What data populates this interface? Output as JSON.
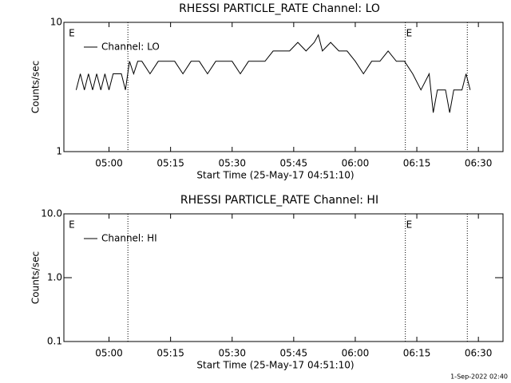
{
  "chart_data": [
    {
      "type": "line",
      "title": "RHESSI PARTICLE_RATE Channel: LO",
      "xlabel": "Start Time (25-May-17 04:51:10)",
      "ylabel": "Counts/sec",
      "log_y": true,
      "xlim": [
        289,
        396
      ],
      "ylim": [
        1,
        10
      ],
      "yticks": [
        1,
        10
      ],
      "xticks": [
        {
          "value": 300,
          "label": "05:00"
        },
        {
          "value": 315,
          "label": "05:15"
        },
        {
          "value": 330,
          "label": "05:30"
        },
        {
          "value": 345,
          "label": "05:45"
        },
        {
          "value": 360,
          "label": "06:00"
        },
        {
          "value": 375,
          "label": "06:15"
        },
        {
          "value": 390,
          "label": "06:30"
        }
      ],
      "vlines": [
        304.6,
        372.2,
        387.3
      ],
      "annotations": [
        {
          "text": "E",
          "x": 290
        },
        {
          "text": "E",
          "x": 372.2
        }
      ],
      "x": [
        292,
        293,
        294,
        295,
        296,
        297,
        298,
        299,
        300,
        301,
        302,
        303,
        304,
        305,
        306,
        307,
        308,
        310,
        312,
        314,
        316,
        318,
        320,
        322,
        324,
        326,
        328,
        330,
        332,
        334,
        336,
        338,
        340,
        342,
        344,
        346,
        348,
        350,
        351,
        352,
        354,
        356,
        358,
        360,
        362,
        364,
        366,
        368,
        370,
        372,
        374,
        376,
        378,
        379,
        380,
        382,
        383,
        384,
        386,
        387,
        388
      ],
      "series": [
        {
          "name": "Channel: LO",
          "color": "#000000",
          "values": [
            3,
            4,
            3,
            4,
            3,
            4,
            3,
            4,
            3,
            4,
            4,
            4,
            3,
            5,
            4,
            5,
            5,
            4,
            5,
            5,
            5,
            4,
            5,
            5,
            4,
            5,
            5,
            5,
            4,
            5,
            5,
            5,
            6,
            6,
            6,
            7,
            6,
            7,
            8,
            6,
            7,
            6,
            6,
            5,
            4,
            5,
            5,
            6,
            5,
            5,
            4,
            3,
            4,
            2,
            3,
            3,
            2,
            3,
            3,
            4,
            3
          ]
        }
      ]
    },
    {
      "type": "line",
      "title": "RHESSI PARTICLE_RATE Channel: HI",
      "xlabel": "Start Time (25-May-17 04:51:10)",
      "ylabel": "Counts/sec",
      "log_y": true,
      "xlim": [
        289,
        396
      ],
      "ylim": [
        0.1,
        10
      ],
      "yticks": [
        0.1,
        {
          "value": 1,
          "label": "1.0"
        },
        {
          "value": 10,
          "label": "10.0"
        }
      ],
      "xticks": [
        {
          "value": 300,
          "label": "05:00"
        },
        {
          "value": 315,
          "label": "05:15"
        },
        {
          "value": 330,
          "label": "05:30"
        },
        {
          "value": 345,
          "label": "05:45"
        },
        {
          "value": 360,
          "label": "06:00"
        },
        {
          "value": 375,
          "label": "06:15"
        },
        {
          "value": 390,
          "label": "06:30"
        }
      ],
      "vlines": [
        304.6,
        372.2,
        387.3
      ],
      "annotations": [
        {
          "text": "E",
          "x": 290
        },
        {
          "text": "E",
          "x": 372.2
        }
      ],
      "x": [],
      "series": [
        {
          "name": "Channel: HI",
          "color": "#000000",
          "values": []
        }
      ]
    }
  ],
  "footer": "1-Sep-2022 02:40"
}
